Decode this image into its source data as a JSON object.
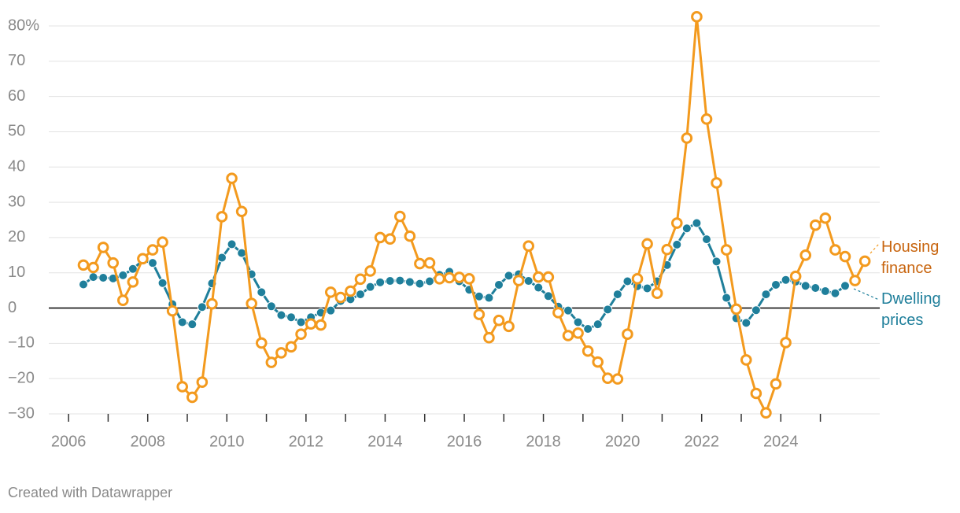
{
  "chart_data": {
    "type": "line",
    "credit": "Created with Datawrapper",
    "xlim": [
      2005.5,
      2026.5
    ],
    "xticks": [
      2006,
      2008,
      2010,
      2012,
      2014,
      2016,
      2018,
      2020,
      2022,
      2024
    ],
    "xminorticks": [
      2007,
      2009,
      2011,
      2013,
      2015,
      2017,
      2019,
      2021,
      2023,
      2025
    ],
    "ylim": [
      -30,
      80
    ],
    "yticks": [
      {
        "value": -30,
        "label": "−30"
      },
      {
        "value": -20,
        "label": "−20"
      },
      {
        "value": -10,
        "label": "−10"
      },
      0,
      10,
      20,
      30,
      40,
      50,
      60,
      {
        "value": 70,
        "label": "70"
      },
      {
        "value": 80,
        "label": "80%"
      }
    ],
    "grid": true,
    "zero_line": true,
    "x": [
      2006.375,
      2006.625,
      2006.875,
      2007.125,
      2007.375,
      2007.625,
      2007.875,
      2008.125,
      2008.375,
      2008.625,
      2008.875,
      2009.125,
      2009.375,
      2009.625,
      2009.875,
      2010.125,
      2010.375,
      2010.625,
      2010.875,
      2011.125,
      2011.375,
      2011.625,
      2011.875,
      2012.125,
      2012.375,
      2012.625,
      2012.875,
      2013.125,
      2013.375,
      2013.625,
      2013.875,
      2014.125,
      2014.375,
      2014.625,
      2014.875,
      2015.125,
      2015.375,
      2015.625,
      2015.875,
      2016.125,
      2016.375,
      2016.625,
      2016.875,
      2017.125,
      2017.375,
      2017.625,
      2017.875,
      2018.125,
      2018.375,
      2018.625,
      2018.875,
      2019.125,
      2019.375,
      2019.625,
      2019.875,
      2020.125,
      2020.375,
      2020.625,
      2020.875,
      2021.125,
      2021.375,
      2021.625,
      2021.875,
      2022.125,
      2022.375,
      2022.625,
      2022.875,
      2023.125,
      2023.375,
      2023.625,
      2023.875,
      2024.125,
      2024.375,
      2024.625,
      2024.875,
      2025.125,
      2025.375,
      2025.625,
      2025.875,
      2026.125
    ],
    "series": [
      {
        "name": "Housing finance",
        "color": "#f39a1e",
        "label_color": "#c8650f",
        "marker": "hollow",
        "values": [
          12.2,
          11.5,
          17.2,
          12.8,
          2.2,
          7.4,
          14,
          16.5,
          18.7,
          -0.8,
          -22.3,
          -25.3,
          -21,
          1.2,
          25.9,
          36.8,
          27.4,
          1.3,
          -9.9,
          -15.4,
          -12.7,
          -11,
          -7.4,
          -4.5,
          -4.8,
          4.5,
          3,
          4.8,
          8.2,
          10.5,
          20,
          19.6,
          26,
          20.4,
          12.6,
          12.8,
          8.3,
          8.6,
          8.7,
          8.3,
          -1.8,
          -8.4,
          -3.5,
          -5.2,
          7.8,
          17.6,
          8.8,
          8.8,
          -1.3,
          -7.8,
          -7.1,
          -12.2,
          -15.3,
          -19.9,
          -20.1,
          -7.4,
          8.3,
          18.2,
          4.2,
          16.6,
          24.1,
          48.2,
          82.6,
          53.6,
          35.5,
          16.5,
          -0.3,
          -14.7,
          -24.2,
          -29.7,
          -21.5,
          -9.8,
          9,
          15,
          23.5,
          25.5,
          16.5,
          14.6,
          7.8,
          13.3
        ]
      },
      {
        "name": "Dwelling prices",
        "color": "#1f7f9b",
        "label_color": "#1f7f9b",
        "marker": "filled",
        "values": [
          6.7,
          8.8,
          8.6,
          8.4,
          9.3,
          11.1,
          13.5,
          12.8,
          7.1,
          1.1,
          -4,
          -4.6,
          0.3,
          7,
          14.3,
          18.1,
          15.6,
          9.6,
          4.5,
          0.5,
          -2,
          -2.6,
          -4,
          -2.6,
          -1.3,
          -0.7,
          2,
          2.5,
          3.9,
          6,
          7.3,
          7.7,
          7.8,
          7.4,
          6.9,
          7.6,
          9.4,
          10.3,
          7.6,
          5.2,
          3.3,
          2.9,
          6.6,
          9.2,
          9.6,
          7.7,
          5.8,
          3.4,
          0.4,
          -0.7,
          -4,
          -5.9,
          -4.6,
          -0.4,
          3.9,
          7.6,
          6.2,
          5.6,
          7.6,
          12.2,
          18,
          22.6,
          24.1,
          19.5,
          13.2,
          2.9,
          -2.9,
          -4.2,
          -0.6,
          3.9,
          6.6,
          8,
          7.5,
          6.3,
          5.7,
          4.8,
          4.2,
          6.3,
          null,
          null
        ]
      }
    ]
  }
}
